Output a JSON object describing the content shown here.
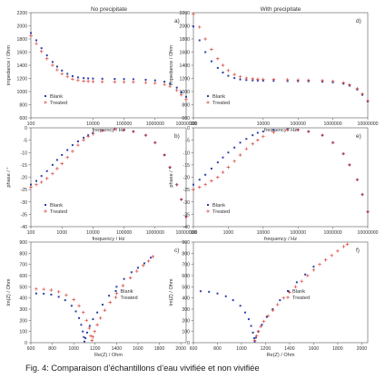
{
  "figure": {
    "col_titles": [
      "No precipitate",
      "With precipitate"
    ],
    "caption": "Fig. 4: Comparaison d’échantillons d’eau vivifiée et non vivifiée"
  },
  "colors": {
    "blank": "#2b3fa8",
    "treated": "#d8443f",
    "axis": "#555555",
    "text": "#333333"
  },
  "chart_data": [
    {
      "id": "a",
      "type": "scatter",
      "tag": "a)",
      "xscale": "log",
      "xlabel": "frequency / Hz",
      "ylabel": "impedance / Ohm",
      "xticks": [
        100,
        10000,
        100000,
        1000000,
        10000000
      ],
      "xtick_labels": [
        "100",
        "10000",
        "100000",
        "1000000",
        "10000000"
      ],
      "yticks": [
        600,
        800,
        1000,
        1200,
        1400,
        1600,
        1800,
        2000,
        2200
      ],
      "xlim": [
        100,
        10000000
      ],
      "ylim": [
        600,
        2200
      ],
      "legend": "bottom-left",
      "series": [
        {
          "name": "Blank",
          "x": [
            100,
            150,
            220,
            330,
            500,
            700,
            1000,
            1500,
            2200,
            3300,
            5000,
            7000,
            10000,
            20000,
            50000,
            100000,
            200000,
            500000,
            1000000,
            2000000,
            3000000,
            5000000,
            7000000,
            10000000
          ],
          "y": [
            1890,
            1780,
            1660,
            1550,
            1450,
            1380,
            1320,
            1270,
            1235,
            1215,
            1205,
            1200,
            1198,
            1195,
            1192,
            1190,
            1188,
            1180,
            1170,
            1150,
            1120,
            1060,
            990,
            920
          ]
        },
        {
          "name": "Treated",
          "x": [
            100,
            150,
            220,
            330,
            500,
            700,
            1000,
            1500,
            2200,
            3300,
            5000,
            7000,
            10000,
            20000,
            50000,
            100000,
            200000,
            500000,
            1000000,
            2000000,
            3000000,
            5000000,
            7000000,
            10000000
          ],
          "y": [
            1850,
            1730,
            1610,
            1500,
            1400,
            1330,
            1270,
            1225,
            1190,
            1170,
            1160,
            1155,
            1152,
            1150,
            1148,
            1146,
            1144,
            1137,
            1127,
            1108,
            1080,
            1020,
            950,
            880
          ]
        }
      ]
    },
    {
      "id": "b",
      "type": "scatter",
      "tag": "b)",
      "xscale": "log",
      "xlabel": "frequency / Hz",
      "ylabel": "phase / °",
      "xticks": [
        100,
        1000,
        10000,
        100000,
        1000000,
        10000000
      ],
      "xtick_labels": [
        "100",
        "1000",
        "10000",
        "100000",
        "1000000",
        "10000000"
      ],
      "yticks": [
        -40,
        -35,
        -30,
        -25,
        -20,
        -15,
        -10,
        -5,
        0
      ],
      "xlim": [
        100,
        10000000
      ],
      "ylim": [
        -40,
        0
      ],
      "legend": "bottom-left",
      "series": [
        {
          "name": "Blank",
          "x": [
            100,
            150,
            220,
            330,
            500,
            700,
            1000,
            1500,
            2200,
            3300,
            5000,
            7000,
            10000,
            20000,
            50000,
            100000,
            200000,
            500000,
            1000000,
            2000000,
            3000000,
            5000000,
            7000000,
            10000000
          ],
          "y": [
            -23,
            -21.5,
            -19.5,
            -17.5,
            -15,
            -13,
            -11,
            -9,
            -7,
            -5.5,
            -4,
            -3,
            -2,
            -1,
            -0.5,
            -0.8,
            -1.5,
            -3,
            -6,
            -11,
            -16,
            -23,
            -29,
            -36
          ]
        },
        {
          "name": "Treated",
          "x": [
            100,
            150,
            220,
            330,
            500,
            700,
            1000,
            1500,
            2200,
            3300,
            5000,
            7000,
            10000,
            20000,
            50000,
            100000,
            200000,
            500000,
            1000000,
            2000000,
            3000000,
            5000000,
            7000000,
            10000000
          ],
          "y": [
            -24,
            -23,
            -22,
            -20.5,
            -18.5,
            -16.5,
            -14.5,
            -12,
            -9.5,
            -7,
            -5,
            -3.5,
            -2.5,
            -1.2,
            -0.5,
            -0.8,
            -1.5,
            -3,
            -6,
            -11,
            -16,
            -23,
            -29,
            -36
          ]
        }
      ]
    },
    {
      "id": "c",
      "type": "scatter",
      "tag": "c)",
      "xscale": "linear",
      "xlabel": "Re(Z) / Ohm",
      "ylabel": "Im(Z) / Ohm",
      "xticks": [
        600,
        800,
        1000,
        1200,
        1400,
        1600,
        1800,
        2000
      ],
      "xtick_labels": [
        "600",
        "800",
        "1000",
        "1200",
        "1400",
        "1600",
        "1800",
        "2000"
      ],
      "yticks": [
        0,
        100,
        200,
        300,
        400,
        500,
        600,
        700,
        800,
        900
      ],
      "xlim": [
        600,
        2050
      ],
      "ylim": [
        0,
        900
      ],
      "legend": "top-center",
      "series": [
        {
          "name": "Blank",
          "x": [
            650,
            720,
            790,
            860,
            920,
            980,
            1020,
            1050,
            1070,
            1085,
            1095,
            1100,
            1110,
            1125,
            1150,
            1180,
            1220,
            1270,
            1330,
            1400,
            1470,
            1540,
            1600,
            1660,
            1720
          ],
          "y": [
            440,
            438,
            430,
            410,
            380,
            330,
            280,
            220,
            160,
            100,
            50,
            10,
            40,
            90,
            150,
            210,
            270,
            340,
            420,
            500,
            570,
            630,
            670,
            710,
            760
          ]
        },
        {
          "name": "Treated",
          "x": [
            650,
            720,
            790,
            860,
            930,
            1000,
            1050,
            1090,
            1120,
            1145,
            1160,
            1170,
            1180,
            1195,
            1220,
            1250,
            1290,
            1340,
            1400,
            1460,
            1530,
            1590,
            1650,
            1700,
            1740
          ],
          "y": [
            480,
            478,
            470,
            455,
            425,
            385,
            330,
            270,
            200,
            130,
            60,
            20,
            50,
            100,
            160,
            220,
            290,
            360,
            440,
            510,
            580,
            640,
            690,
            730,
            770
          ]
        }
      ]
    },
    {
      "id": "d",
      "type": "scatter",
      "tag": "d)",
      "xscale": "log",
      "xlabel": "frequency / Hz",
      "ylabel": "impedance / Ohm",
      "xticks": [
        100,
        10000,
        100000,
        1000000,
        10000000
      ],
      "xtick_labels": [
        "100",
        "10000",
        "100000",
        "1000000",
        "10000000"
      ],
      "yticks": [
        600,
        800,
        1000,
        1200,
        1400,
        1600,
        1800,
        2000,
        2200
      ],
      "xlim": [
        100,
        10000000
      ],
      "ylim": [
        600,
        2200
      ],
      "legend": "bottom-left",
      "series": [
        {
          "name": "Blank",
          "x": [
            100,
            150,
            220,
            330,
            500,
            700,
            1000,
            1500,
            2200,
            3300,
            5000,
            7000,
            10000,
            20000,
            50000,
            100000,
            200000,
            500000,
            1000000,
            2000000,
            3000000,
            5000000,
            7000000,
            10000000
          ],
          "y": [
            1990,
            1780,
            1600,
            1460,
            1360,
            1290,
            1240,
            1205,
            1185,
            1175,
            1170,
            1167,
            1165,
            1163,
            1160,
            1158,
            1156,
            1150,
            1140,
            1120,
            1090,
            1030,
            950,
            850
          ]
        },
        {
          "name": "Treated",
          "x": [
            100,
            150,
            220,
            330,
            500,
            700,
            1000,
            1500,
            2200,
            3300,
            5000,
            7000,
            10000,
            20000,
            50000,
            100000,
            200000,
            500000,
            1000000,
            2000000,
            3000000,
            5000000,
            7000000,
            10000000
          ],
          "y": [
            2180,
            1980,
            1800,
            1640,
            1500,
            1400,
            1320,
            1260,
            1225,
            1205,
            1195,
            1190,
            1187,
            1184,
            1180,
            1177,
            1174,
            1167,
            1156,
            1135,
            1105,
            1045,
            965,
            860
          ]
        }
      ]
    },
    {
      "id": "e",
      "type": "scatter",
      "tag": "e)",
      "xscale": "log",
      "xlabel": "frequency / Hz",
      "ylabel": "phase / °",
      "xticks": [
        100,
        1000,
        10000,
        100000,
        1000000,
        10000000
      ],
      "xtick_labels": [
        "100",
        "1000",
        "10000",
        "100000",
        "1000000",
        "10000000"
      ],
      "yticks": [
        -40,
        -35,
        -30,
        -25,
        -20,
        -15,
        -10,
        -5,
        0
      ],
      "xlim": [
        100,
        10000000
      ],
      "ylim": [
        -40,
        0
      ],
      "legend": "bottom-left",
      "series": [
        {
          "name": "Blank",
          "x": [
            100,
            150,
            220,
            330,
            500,
            700,
            1000,
            1500,
            2200,
            3300,
            5000,
            7000,
            10000,
            20000,
            50000,
            100000,
            200000,
            500000,
            1000000,
            2000000,
            3000000,
            5000000,
            7000000,
            10000000
          ],
          "y": [
            -23,
            -21,
            -19,
            -16.5,
            -14,
            -12,
            -10,
            -8,
            -6,
            -4.5,
            -3,
            -2,
            -1.5,
            -0.8,
            -0.5,
            -0.8,
            -1.5,
            -3,
            -6,
            -10.5,
            -15,
            -21,
            -27,
            -34
          ]
        },
        {
          "name": "Treated",
          "x": [
            100,
            150,
            220,
            330,
            500,
            700,
            1000,
            1500,
            2200,
            3300,
            5000,
            7000,
            10000,
            20000,
            50000,
            100000,
            200000,
            500000,
            1000000,
            2000000,
            3000000,
            5000000,
            7000000,
            10000000
          ],
          "y": [
            -25,
            -24,
            -23,
            -21.5,
            -20,
            -18,
            -16,
            -13.5,
            -11,
            -8.5,
            -6.5,
            -5,
            -3.5,
            -1.8,
            -0.8,
            -0.9,
            -1.5,
            -3,
            -6,
            -10.5,
            -15,
            -21,
            -27,
            -34
          ]
        }
      ]
    },
    {
      "id": "f",
      "type": "scatter",
      "tag": "f)",
      "xscale": "linear",
      "xlabel": "Re(Z) / Ohm",
      "ylabel": "Im(Z) / Ohm",
      "xticks": [
        600,
        800,
        1000,
        1200,
        1400,
        1600,
        1800,
        2000
      ],
      "xtick_labels": [
        "600",
        "800",
        "1000",
        "1200",
        "1400",
        "1600",
        "1800",
        "2000"
      ],
      "yticks": [
        0,
        100,
        200,
        300,
        400,
        500,
        600,
        700,
        800,
        900
      ],
      "xlim": [
        600,
        2050
      ],
      "ylim": [
        0,
        900
      ],
      "legend": "top-center",
      "series": [
        {
          "name": "Blank",
          "x": [
            660,
            730,
            800,
            870,
            930,
            990,
            1030,
            1060,
            1080,
            1095,
            1105,
            1110,
            1120,
            1140,
            1170,
            1210,
            1260,
            1320,
            1390,
            1460,
            1530,
            1600
          ],
          "y": [
            460,
            455,
            440,
            415,
            380,
            330,
            270,
            210,
            150,
            90,
            40,
            10,
            45,
            100,
            160,
            230,
            300,
            380,
            460,
            540,
            610,
            680
          ]
        },
        {
          "name": "Treated",
          "x": [
            1110,
            1125,
            1140,
            1160,
            1185,
            1220,
            1260,
            1300,
            1350,
            1400,
            1450,
            1500,
            1550,
            1600,
            1650,
            1700,
            1750,
            1800,
            1850,
            1880
          ],
          "y": [
            20,
            60,
            100,
            145,
            190,
            240,
            290,
            340,
            400,
            450,
            500,
            550,
            600,
            650,
            700,
            740,
            780,
            820,
            860,
            880
          ]
        }
      ]
    }
  ]
}
